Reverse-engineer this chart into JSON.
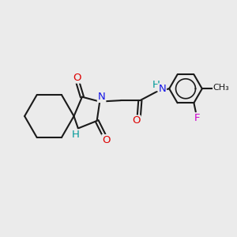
{
  "bg_color": "#ebebeb",
  "bond_color": "#1a1a1a",
  "bond_lw": 1.5,
  "fs": 9.5,
  "colors": {
    "N": "#1414e6",
    "O": "#dd0000",
    "H": "#009999",
    "F": "#cc00cc",
    "C": "#1a1a1a"
  },
  "figsize": [
    3.0,
    3.0
  ],
  "dpi": 100
}
